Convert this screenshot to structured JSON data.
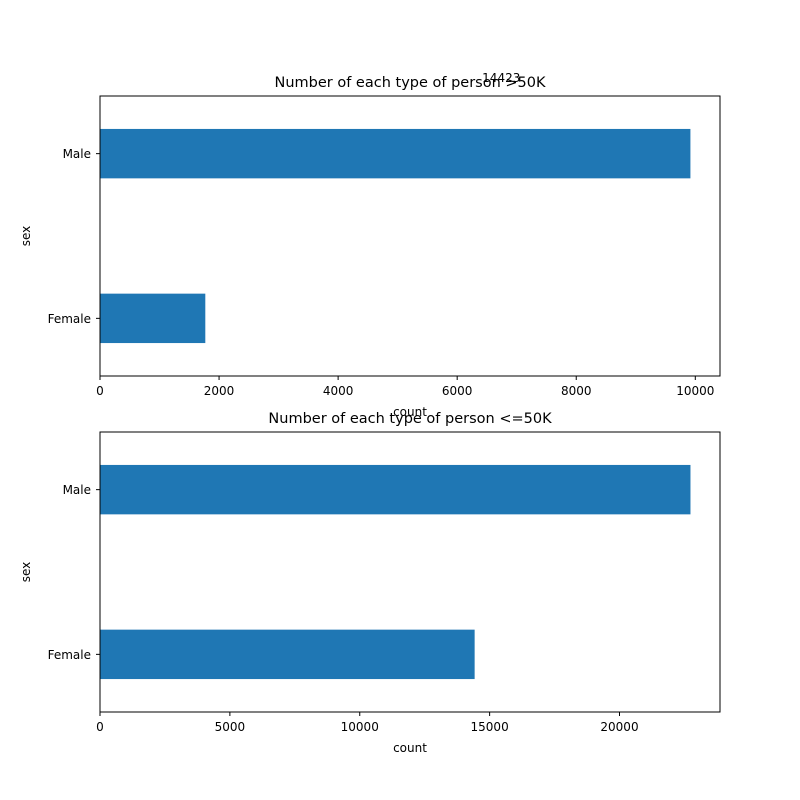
{
  "chart_data": [
    {
      "type": "bar",
      "orientation": "horizontal",
      "title": "Number of each type of person >50K",
      "xlabel": "count",
      "ylabel": "sex",
      "categories": [
        "Male",
        "Female"
      ],
      "values": [
        9918,
        1769
      ],
      "xlim": [
        0,
        10415
      ],
      "xticks": [
        0,
        2000,
        4000,
        6000,
        8000,
        10000
      ],
      "xtick_labels": [
        "0",
        "2000",
        "4000",
        "6000",
        "8000",
        "10000"
      ],
      "bar_color": "#1f77b4",
      "grid": false,
      "annotations": [
        {
          "text": "14423",
          "x": 6420
        }
      ]
    },
    {
      "type": "bar",
      "orientation": "horizontal",
      "title": "Number of each type of person <=50K",
      "xlabel": "count",
      "ylabel": "sex",
      "categories": [
        "Male",
        "Female"
      ],
      "values": [
        22732,
        14423
      ],
      "xlim": [
        0,
        23869
      ],
      "xticks": [
        0,
        5000,
        10000,
        15000,
        20000
      ],
      "xtick_labels": [
        "0",
        "5000",
        "10000",
        "15000",
        "20000"
      ],
      "bar_color": "#1f77b4",
      "grid": false,
      "annotations": []
    }
  ]
}
